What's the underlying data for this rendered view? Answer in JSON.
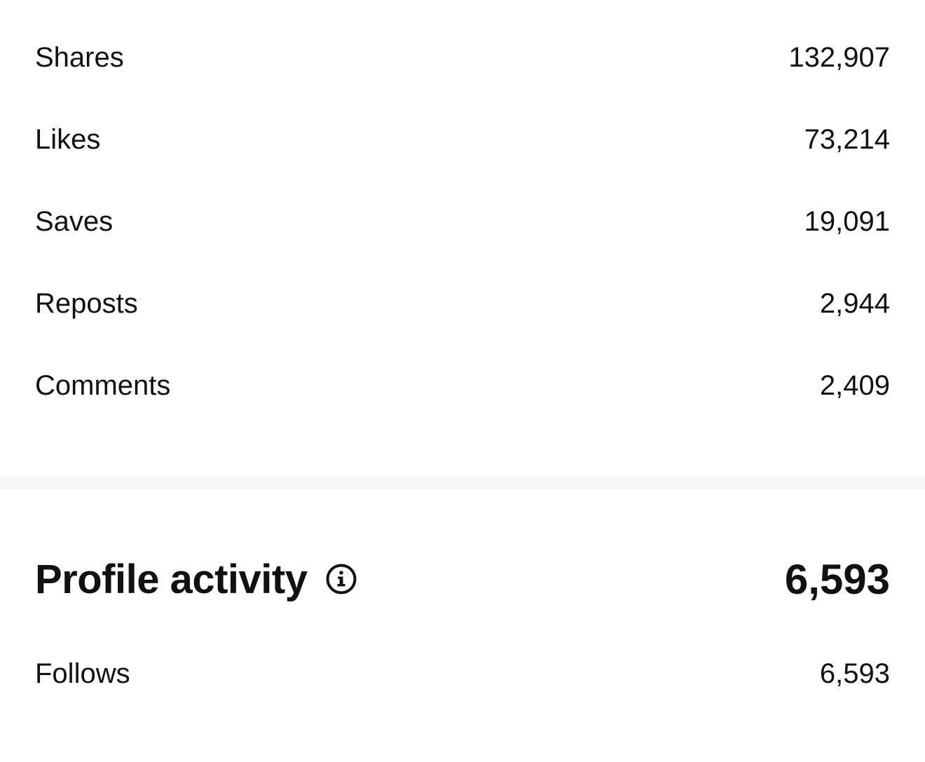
{
  "engagement": {
    "rows": [
      {
        "label": "Shares",
        "value": "132,907"
      },
      {
        "label": "Likes",
        "value": "73,214"
      },
      {
        "label": "Saves",
        "value": "19,091"
      },
      {
        "label": "Reposts",
        "value": "2,944"
      },
      {
        "label": "Comments",
        "value": "2,409"
      }
    ]
  },
  "profile_activity": {
    "title": "Profile activity",
    "info_icon": "info-icon",
    "total": "6,593",
    "rows": [
      {
        "label": "Follows",
        "value": "6,593"
      }
    ]
  }
}
